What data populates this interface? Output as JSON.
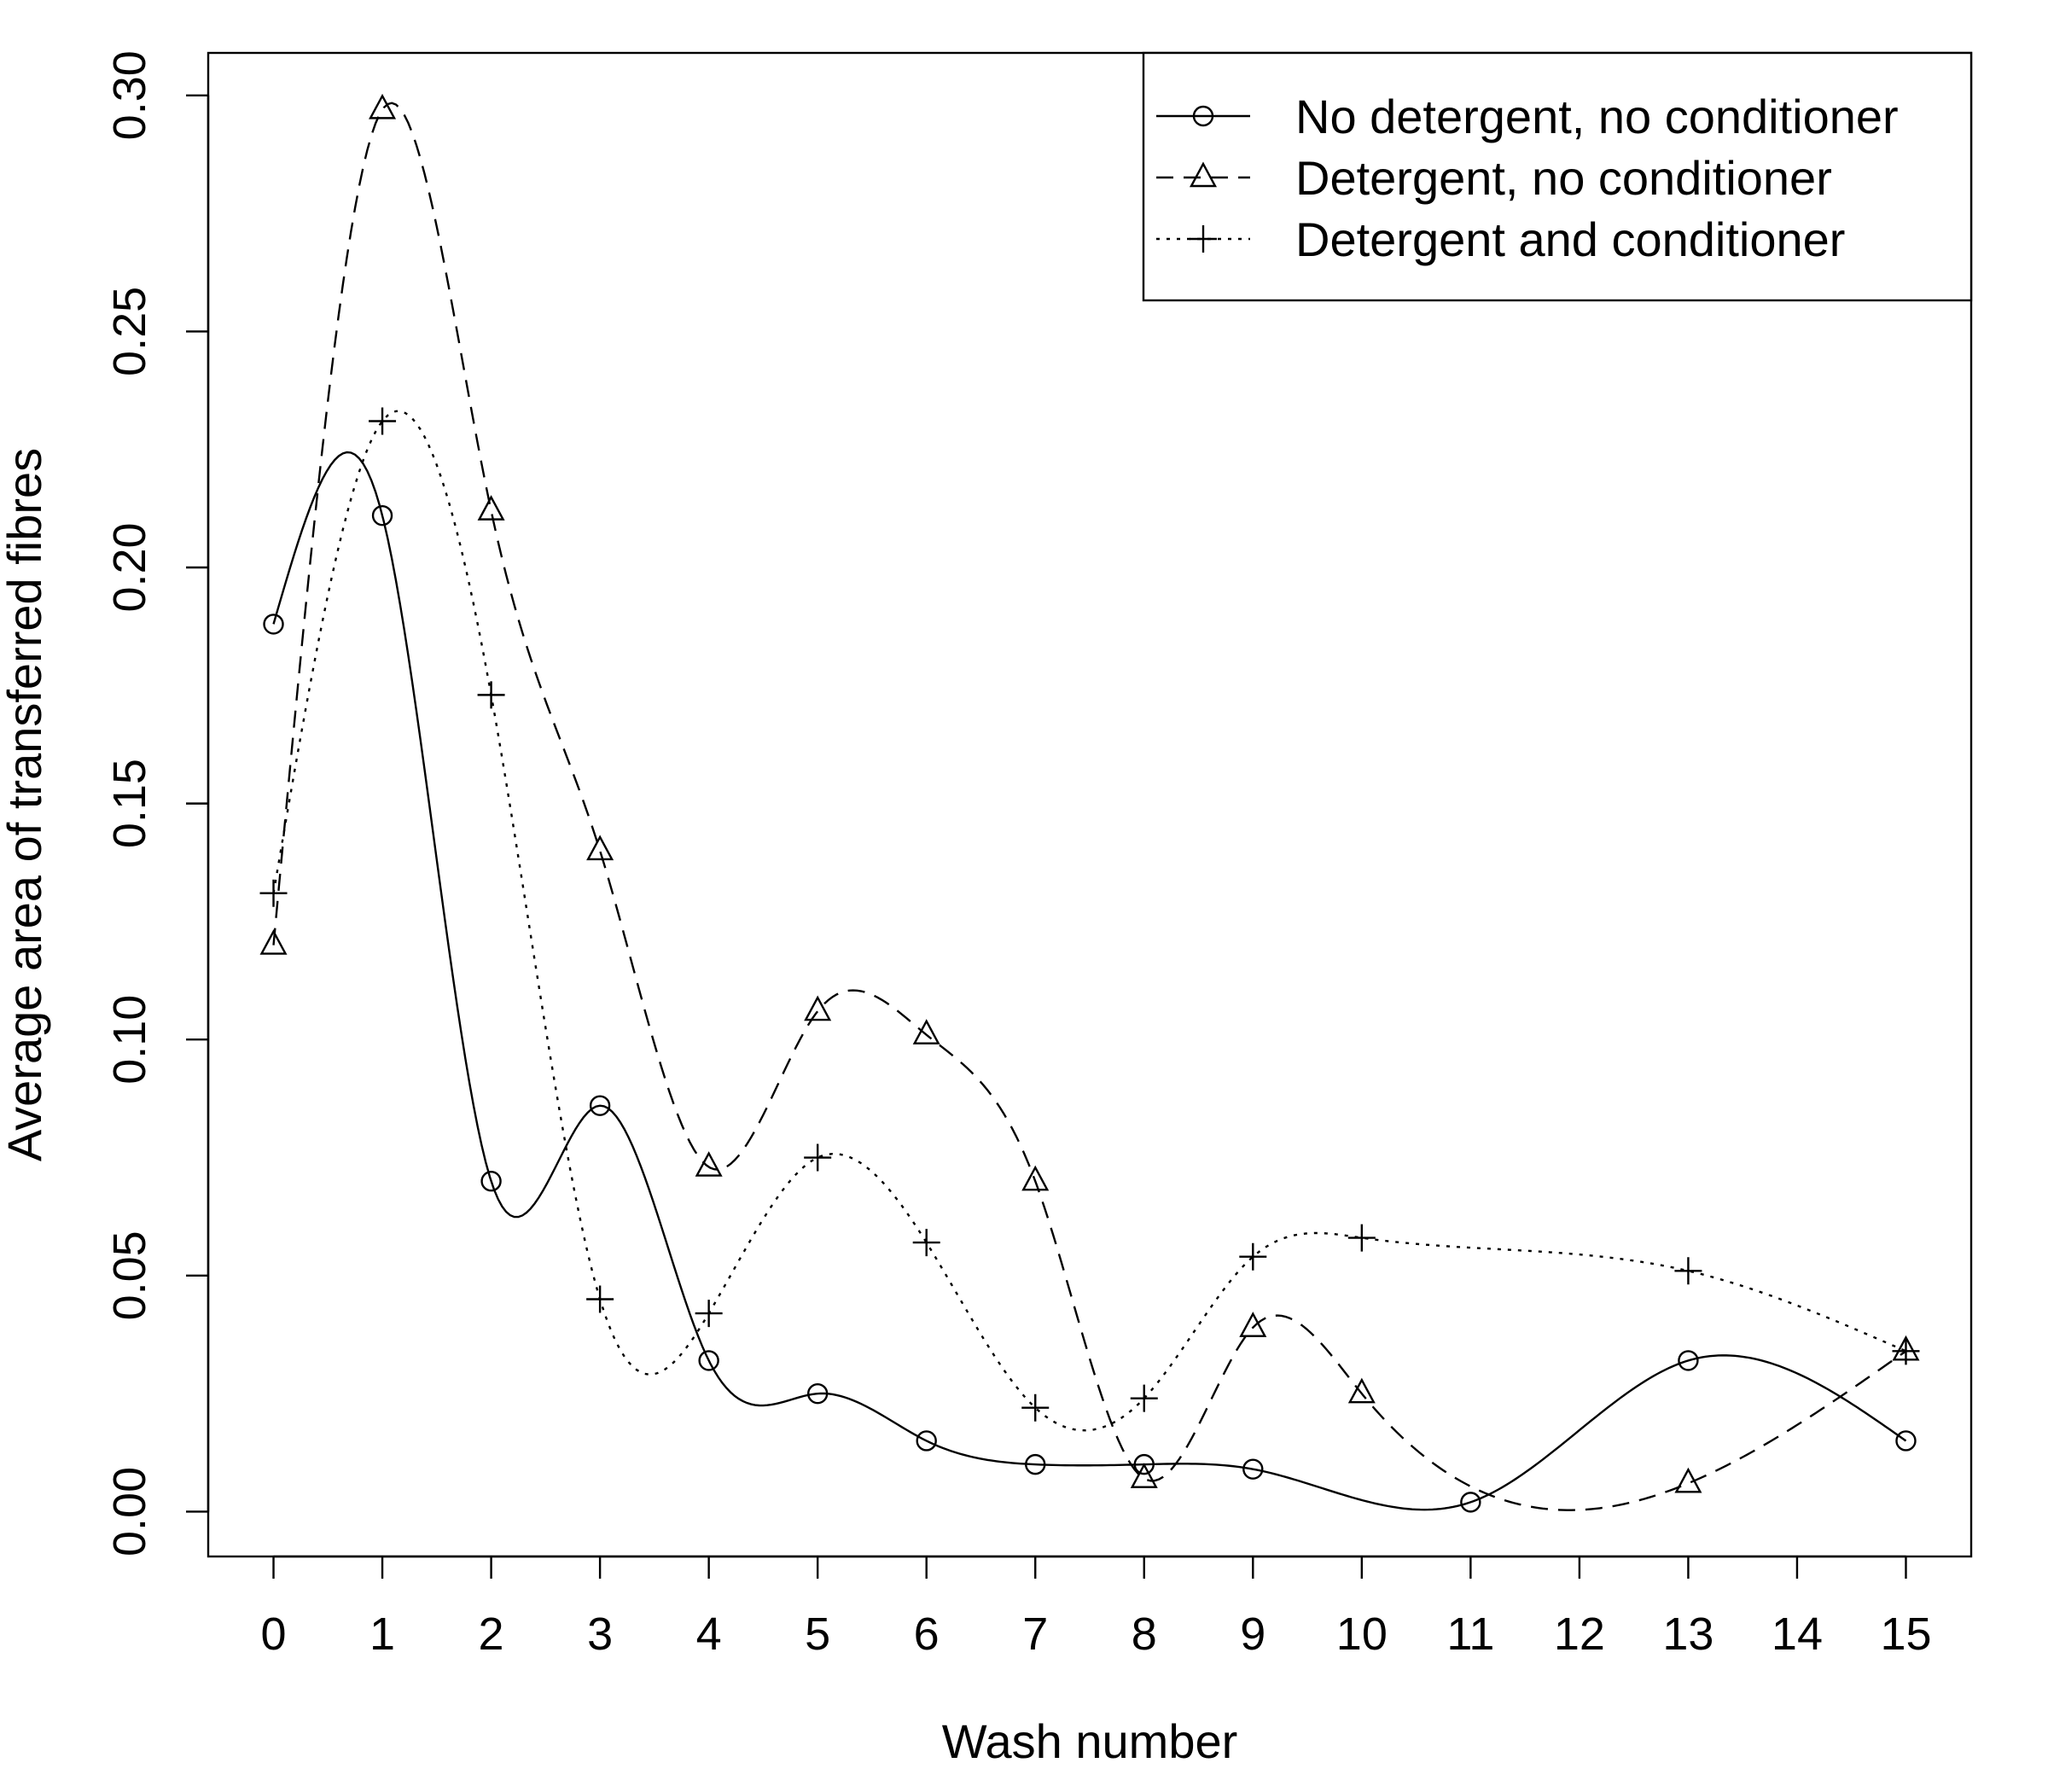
{
  "chart_data": {
    "type": "line",
    "title": "",
    "xlabel": "Wash number",
    "ylabel": "Average area of transferred fibres",
    "x": [
      0,
      1,
      2,
      3,
      4,
      5,
      6,
      7,
      8,
      9,
      10,
      11,
      13,
      15
    ],
    "x_ticks": [
      "0",
      "1",
      "2",
      "3",
      "4",
      "5",
      "6",
      "7",
      "8",
      "9",
      "10",
      "11",
      "12",
      "13",
      "14",
      "15"
    ],
    "y_ticks": [
      "0.00",
      "0.05",
      "0.10",
      "0.15",
      "0.20",
      "0.25",
      "0.30"
    ],
    "xlim": [
      -0.6,
      15.6
    ],
    "ylim": [
      -0.0095,
      0.309
    ],
    "grid": false,
    "legend_position": "top-right",
    "series": [
      {
        "name": "No detergent, no conditioner",
        "marker": "circle",
        "line_style": "solid",
        "x": [
          0,
          1,
          2,
          3,
          4,
          5,
          6,
          7,
          8,
          9,
          11,
          13,
          15
        ],
        "values": [
          0.188,
          0.211,
          0.07,
          0.086,
          0.032,
          0.025,
          0.015,
          0.01,
          0.01,
          0.009,
          0.002,
          0.032,
          0.015
        ]
      },
      {
        "name": "Detergent, no conditioner",
        "marker": "triangle",
        "line_style": "dashed",
        "x": [
          0,
          1,
          2,
          3,
          4,
          5,
          6,
          7,
          8,
          9,
          10,
          13,
          15
        ],
        "values": [
          0.12,
          0.297,
          0.212,
          0.14,
          0.073,
          0.106,
          0.101,
          0.07,
          0.007,
          0.039,
          0.025,
          0.006,
          0.034
        ]
      },
      {
        "name": "Detergent and conditioner",
        "marker": "plus",
        "line_style": "dotted",
        "x": [
          0,
          1,
          2,
          3,
          4,
          5,
          6,
          7,
          8,
          9,
          10,
          13,
          15
        ],
        "values": [
          0.131,
          0.231,
          0.173,
          0.045,
          0.042,
          0.075,
          0.057,
          0.022,
          0.024,
          0.054,
          0.058,
          0.051,
          0.034
        ]
      }
    ]
  }
}
